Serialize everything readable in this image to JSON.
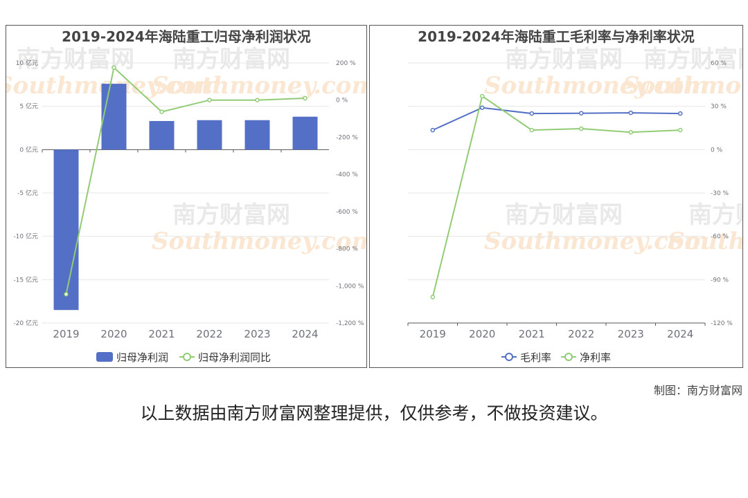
{
  "charts": [
    {
      "id": "left",
      "title": "2019-2024年海陆重工归母净利润状况",
      "chart_data": {
        "type": "bar",
        "categories": [
          "2019",
          "2020",
          "2021",
          "2022",
          "2023",
          "2024"
        ],
        "series": [
          {
            "name": "归母净利润",
            "type": "bar",
            "axis": "left",
            "values": [
              -18.5,
              7.6,
              3.3,
              3.4,
              3.4,
              3.8
            ]
          },
          {
            "name": "归母净利润同比",
            "type": "line",
            "axis": "right",
            "values": [
              -1045,
              175,
              -63,
              0,
              0,
              10
            ]
          }
        ],
        "left_axis": {
          "min": -20,
          "max": 10,
          "step": 5,
          "unit": " 亿元"
        },
        "right_axis": {
          "min": -1200,
          "max": 200,
          "step": 200,
          "unit": " %"
        },
        "legend_position": "bottom"
      }
    },
    {
      "id": "right",
      "title": "2019-2024年海陆重工毛利率与净利率状况",
      "chart_data": {
        "type": "line",
        "categories": [
          "2019",
          "2020",
          "2021",
          "2022",
          "2023",
          "2024"
        ],
        "series": [
          {
            "name": "毛利率",
            "values": [
              13.5,
              29,
              25,
              25.2,
              25.5,
              25
            ]
          },
          {
            "name": "净利率",
            "values": [
              -102,
              37,
              13.5,
              14.5,
              12,
              13.5
            ]
          }
        ],
        "right_axis": {
          "min": -120,
          "max": 60,
          "step": 30,
          "unit": " %"
        },
        "legend_position": "bottom"
      }
    }
  ],
  "colors": {
    "bar": "#5470c6",
    "line_green": "#91cc75",
    "line_blue": "#5470c6",
    "grid": "#e6e6e6",
    "axis_text": "#6e7079"
  },
  "watermark": {
    "cn": "南方财富网",
    "en": "Southmoney.com"
  },
  "credit": "制图：南方财富网",
  "note": "以上数据由南方财富网整理提供，仅供参考，不做投资建议。"
}
